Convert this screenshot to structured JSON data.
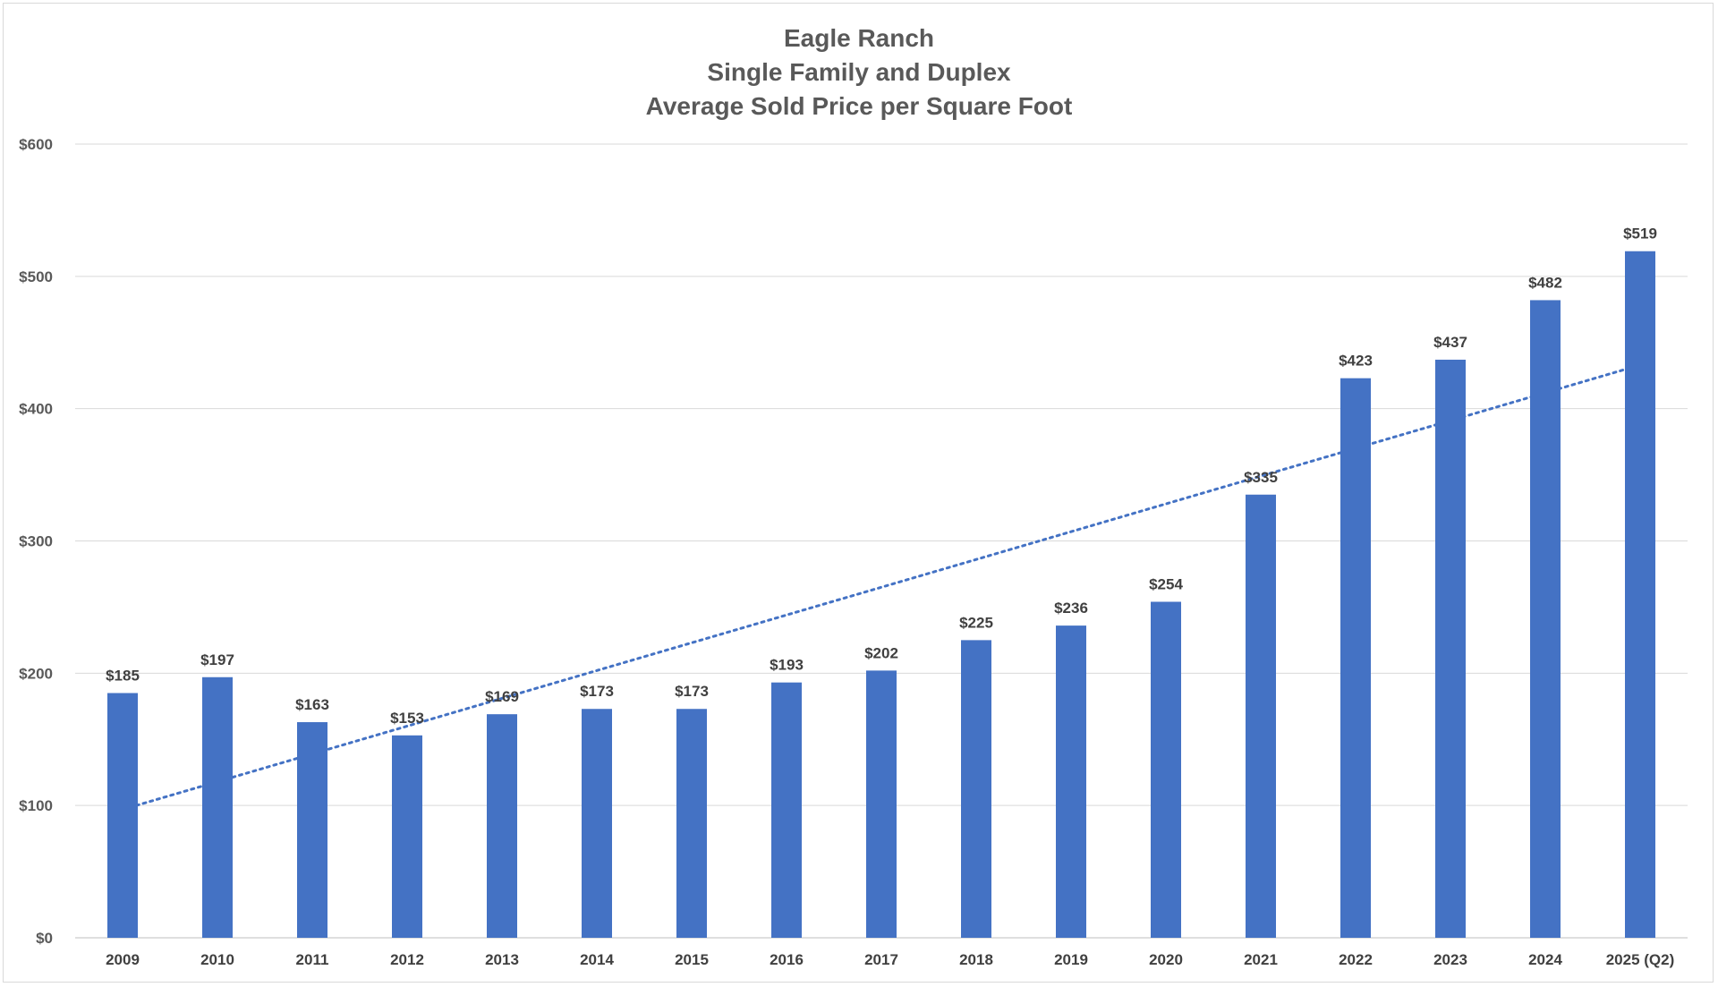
{
  "chart_data": {
    "type": "bar",
    "title_lines": [
      "Eagle Ranch",
      "Single Family and Duplex",
      "Average Sold Price per Square Foot"
    ],
    "xlabel": "",
    "ylabel": "",
    "categories": [
      "2009",
      "2010",
      "2011",
      "2012",
      "2013",
      "2014",
      "2015",
      "2016",
      "2017",
      "2018",
      "2019",
      "2020",
      "2021",
      "2022",
      "2023",
      "2024",
      "2025 (Q2)"
    ],
    "values": [
      185,
      197,
      163,
      153,
      169,
      173,
      173,
      193,
      202,
      225,
      236,
      254,
      335,
      423,
      437,
      482,
      519
    ],
    "data_labels": [
      "$185",
      "$197",
      "$163",
      "$153",
      "$169",
      "$173",
      "$173",
      "$193",
      "$202",
      "$225",
      "$236",
      "$254",
      "$335",
      "$423",
      "$437",
      "$482",
      "$519"
    ],
    "ylim": [
      0,
      600
    ],
    "y_ticks": [
      0,
      100,
      200,
      300,
      400,
      500,
      600
    ],
    "y_tick_labels": [
      "$0",
      "$100",
      "$200",
      "$300",
      "$400",
      "$500",
      "$600"
    ],
    "grid": true,
    "legend": "none",
    "trendline": {
      "type": "linear",
      "style": "dotted",
      "start_value": 97,
      "end_value": 433
    },
    "colors": {
      "bar": "#4472c4",
      "trendline": "#4472c4",
      "title": "#595959",
      "labels": "#404040",
      "grid": "#d9d9d9"
    }
  }
}
